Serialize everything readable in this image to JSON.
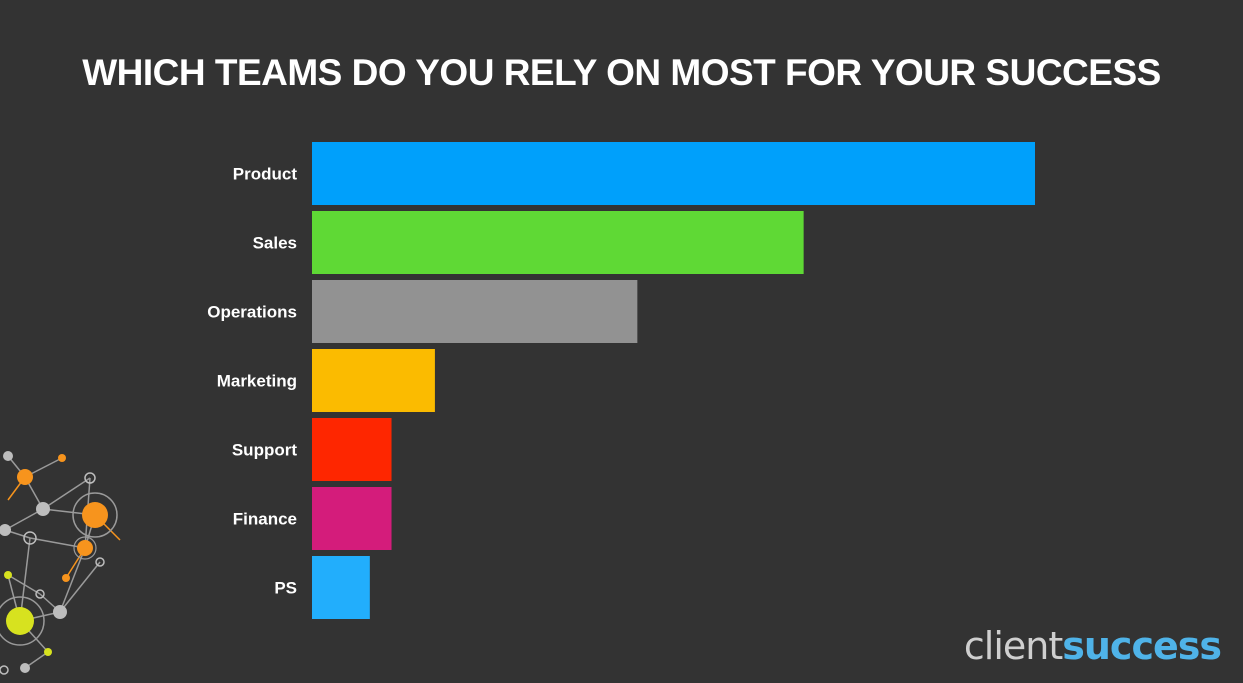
{
  "chart_data": {
    "type": "bar",
    "orientation": "horizontal",
    "title": "WHICH TEAMS DO YOU RELY ON MOST FOR YOUR SUCCESS",
    "categories": [
      "Product",
      "Sales",
      "Operations",
      "Marketing",
      "Support",
      "Finance",
      "PS"
    ],
    "values": [
      100,
      68,
      45,
      17,
      11,
      11,
      8
    ],
    "colors": [
      "#00a0fb",
      "#5fd935",
      "#929292",
      "#fbbb00",
      "#fe2600",
      "#d41c7b",
      "#22aefc"
    ],
    "xlim": [
      0,
      100
    ],
    "grid": false,
    "legend": "none"
  },
  "logo": {
    "word1": "client",
    "word2": "success",
    "color1": "#cfcfcf",
    "color2": "#4fb3e8"
  },
  "decoration": {
    "accent_colors": [
      "#f7941d",
      "#d7e21f",
      "#bdbdbd"
    ],
    "icon": "network-graph-decoration"
  }
}
